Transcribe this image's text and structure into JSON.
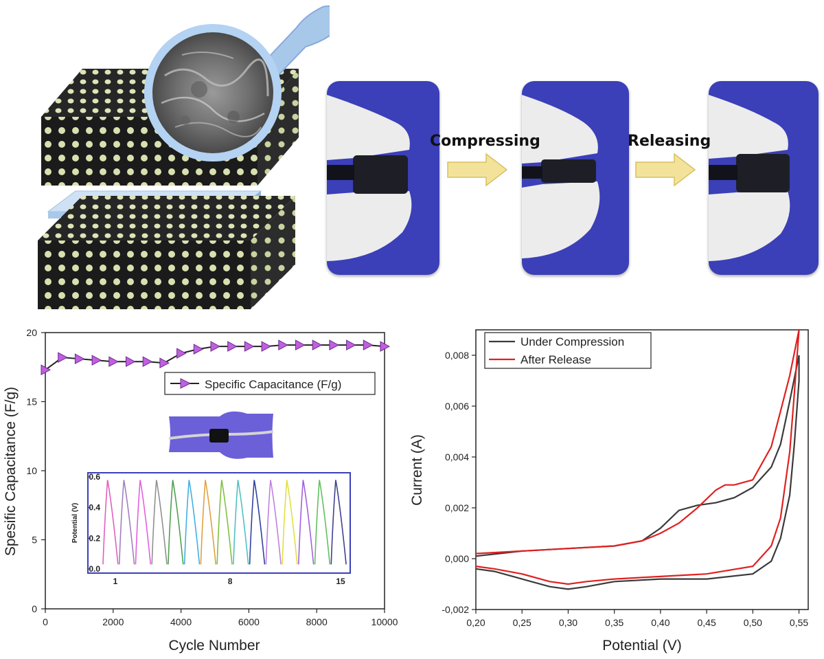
{
  "colors": {
    "glove": "#ececec",
    "card": "#3b3fb8",
    "arrow": "#f3e39a",
    "sponge": "#1e1f26",
    "compression": "#3a3a3a",
    "release": "#e02020",
    "inset_frame": "#3b3fb8",
    "marker": "#c060e0"
  },
  "steps": {
    "compress_label": "Compressing",
    "release_label": "Releasing"
  },
  "capacitance_chart": {
    "type": "line",
    "xlabel": "Cycle Number",
    "ylabel": "Spesific Capacitance (F/g)",
    "legend": "Specific Capacitance (F/g)",
    "xlim": [
      0,
      10000
    ],
    "ylim": [
      0,
      20
    ],
    "xticks": [
      "0",
      "2000",
      "4000",
      "6000",
      "8000",
      "10000"
    ],
    "yticks": [
      "0",
      "5",
      "10",
      "15",
      "20"
    ],
    "x": [
      0,
      500,
      1000,
      1500,
      2000,
      2500,
      3000,
      3500,
      4000,
      4500,
      5000,
      5500,
      6000,
      6500,
      7000,
      7500,
      8000,
      8500,
      9000,
      9500,
      10000
    ],
    "y": [
      17.3,
      18.2,
      18.1,
      18.0,
      17.9,
      17.9,
      17.9,
      17.8,
      18.5,
      18.8,
      19.0,
      19.0,
      19.0,
      19.0,
      19.1,
      19.1,
      19.1,
      19.1,
      19.1,
      19.1,
      19.0
    ],
    "inset": {
      "ylabel": "Potential (V)",
      "yticks": [
        "0.0",
        "0.2",
        "0.4",
        "0.6"
      ],
      "xticks": [
        "1",
        "8",
        "15"
      ],
      "cycles": 15,
      "ymax": 0.6,
      "colors": [
        "#e060c0",
        "#a080c0",
        "#e060e0",
        "#909090",
        "#50a050",
        "#40b0e0",
        "#e0a040",
        "#80c040",
        "#50c0c0",
        "#3040a0",
        "#c080e0",
        "#e0e040",
        "#a060e0",
        "#60c060",
        "#404090"
      ]
    }
  },
  "chart_data": {
    "type": "line",
    "xlabel": "Potential (V)",
    "ylabel": "Current (A)",
    "xlim": [
      0.2,
      0.56
    ],
    "ylim": [
      -0.002,
      0.009
    ],
    "xticks": [
      "0,20",
      "0,25",
      "0,30",
      "0,35",
      "0,40",
      "0,45",
      "0,50",
      "0,55"
    ],
    "yticks": [
      "-0,002",
      "0,000",
      "0,002",
      "0,004",
      "0,006",
      "0,008"
    ],
    "series": [
      {
        "name": "Under Compression",
        "color": "#3a3a3a",
        "x": [
          0.2,
          0.25,
          0.3,
          0.35,
          0.38,
          0.4,
          0.42,
          0.44,
          0.46,
          0.48,
          0.5,
          0.52,
          0.53,
          0.54,
          0.55,
          0.55,
          0.545,
          0.54,
          0.53,
          0.52,
          0.5,
          0.45,
          0.4,
          0.35,
          0.32,
          0.3,
          0.28,
          0.25,
          0.22,
          0.2
        ],
        "y": [
          0.0001,
          0.0003,
          0.0004,
          0.0005,
          0.0007,
          0.0012,
          0.0019,
          0.0021,
          0.0022,
          0.0024,
          0.0028,
          0.0036,
          0.0045,
          0.0062,
          0.008,
          0.007,
          0.0045,
          0.0025,
          0.0008,
          -0.0001,
          -0.0006,
          -0.0008,
          -0.0008,
          -0.0009,
          -0.0011,
          -0.0012,
          -0.0011,
          -0.0008,
          -0.0005,
          -0.0004
        ]
      },
      {
        "name": "After Release",
        "color": "#e02020",
        "x": [
          0.2,
          0.25,
          0.3,
          0.35,
          0.38,
          0.4,
          0.42,
          0.44,
          0.46,
          0.47,
          0.48,
          0.5,
          0.52,
          0.53,
          0.54,
          0.55,
          0.545,
          0.54,
          0.53,
          0.52,
          0.5,
          0.45,
          0.4,
          0.35,
          0.32,
          0.3,
          0.28,
          0.25,
          0.22,
          0.2
        ],
        "y": [
          0.0002,
          0.0003,
          0.0004,
          0.0005,
          0.0007,
          0.001,
          0.0014,
          0.002,
          0.0027,
          0.0029,
          0.0029,
          0.0031,
          0.0044,
          0.0058,
          0.0072,
          0.009,
          0.0065,
          0.0042,
          0.0016,
          0.0005,
          -0.0003,
          -0.0006,
          -0.0007,
          -0.0008,
          -0.0009,
          -0.001,
          -0.0009,
          -0.0006,
          -0.0004,
          -0.0003
        ]
      }
    ]
  }
}
